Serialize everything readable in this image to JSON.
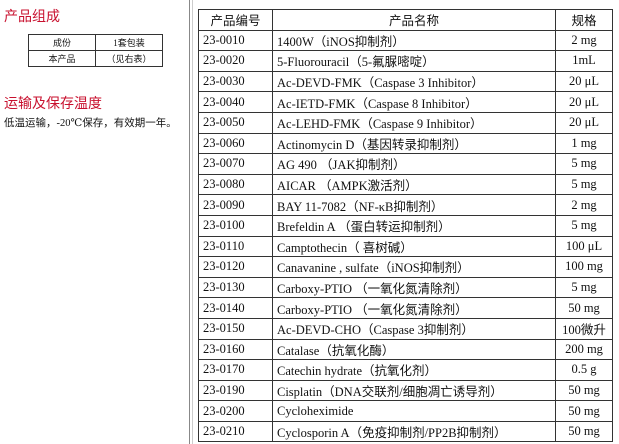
{
  "composition": {
    "title": "产品组成",
    "table": {
      "header": [
        "成份",
        "1套包装"
      ],
      "rows": [
        [
          "本产品",
          "（见右表）"
        ]
      ]
    }
  },
  "storage": {
    "title": "运输及保存温度",
    "text": "低温运输，-20℃保存，有效期一年。"
  },
  "table": {
    "header": [
      "产品编号",
      "产品名称",
      "规格"
    ],
    "rows": [
      [
        "23-0010",
        "1400W（iNOS抑制剂）",
        "2 mg"
      ],
      [
        "23-0020",
        "5-Fluorouracil（5-氟脲嘧啶）",
        "1mL"
      ],
      [
        "23-0030",
        "Ac-DEVD-FMK（Caspase 3 Inhibitor）",
        "20 μL"
      ],
      [
        "23-0040",
        "Ac-IETD-FMK（Caspase 8 Inhibitor）",
        "20 μL"
      ],
      [
        "23-0050",
        "Ac-LEHD-FMK（Caspase 9 Inhibitor）",
        "20 μL"
      ],
      [
        "23-0060",
        "Actinomycin D（基因转录抑制剂）",
        "1 mg"
      ],
      [
        "23-0070",
        "AG 490 （JAK抑制剂）",
        "5 mg"
      ],
      [
        "23-0080",
        "AICAR （AMPK激活剂）",
        "5 mg"
      ],
      [
        "23-0090",
        "BAY 11-7082（NF-κB抑制剂）",
        "2 mg"
      ],
      [
        "23-0100",
        "Brefeldin A （蛋白转运抑制剂）",
        "5 mg"
      ],
      [
        "23-0110",
        "Camptothecin（ 喜树碱）",
        "100 μL"
      ],
      [
        "23-0120",
        "Canavanine , sulfate（iNOS抑制剂）",
        "100 mg"
      ],
      [
        "23-0130",
        "Carboxy-PTIO （一氧化氮清除剂）",
        "5 mg"
      ],
      [
        "23-0140",
        "Carboxy-PTIO （一氧化氮清除剂）",
        "50 mg"
      ],
      [
        "23-0150",
        "Ac-DEVD-CHO（Caspase 3抑制剂）",
        "100微升"
      ],
      [
        "23-0160",
        "Catalase（抗氧化酶）",
        "200 mg"
      ],
      [
        "23-0170",
        "Catechin hydrate（抗氧化剂）",
        "0.5 g"
      ],
      [
        "23-0190",
        "Cisplatin（DNA交联剂/细胞凋亡诱导剂）",
        "50 mg"
      ],
      [
        "23-0200",
        "Cycloheximide",
        "50 mg"
      ],
      [
        "23-0210",
        "Cyclosporin A（免疫抑制剂/PP2B抑制剂）",
        "50 mg"
      ]
    ]
  }
}
